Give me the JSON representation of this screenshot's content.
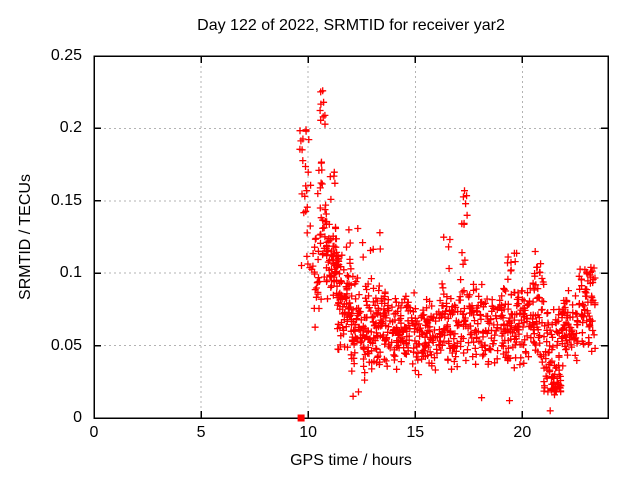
{
  "chart_data": {
    "type": "scatter",
    "title": "Day 122 of 2022, SRMTID for receiver yar2",
    "xlabel": "GPS time / hours",
    "ylabel": "SRMTID / TECUs",
    "xlim": [
      0,
      24
    ],
    "ylim": [
      0,
      0.25
    ],
    "xticks": {
      "values": [
        0,
        5,
        10,
        15,
        20
      ],
      "labels": [
        "0",
        "5",
        "10",
        "15",
        "20"
      ]
    },
    "yticks": {
      "values": [
        0,
        0.05,
        0.1,
        0.15,
        0.2,
        0.25
      ],
      "labels": [
        "0",
        "0.05",
        "0.1",
        "0.15",
        "0.2",
        "0.25"
      ]
    },
    "grid": true,
    "legend": "none",
    "marker": "plus",
    "marker_color": "#ff0000",
    "grid_color": "#b3b3b3",
    "axis_color": "#000000",
    "background_color": "#ffffff",
    "seed": 7,
    "series": [
      {
        "name": "srmtid-scatter",
        "marker": "plus",
        "color": "#ff0000",
        "highlight_points": [
          [
            9.9,
            0.199
          ],
          [
            10.68,
            0.226
          ],
          [
            10.72,
            0.218
          ],
          [
            10.7,
            0.208
          ],
          [
            10.5,
            0.171
          ],
          [
            10.45,
            0.155
          ],
          [
            11.9,
            0.13
          ],
          [
            13.35,
            0.128
          ],
          [
            17.3,
            0.157
          ],
          [
            17.35,
            0.148
          ],
          [
            17.42,
            0.14
          ],
          [
            20.6,
            0.115
          ],
          [
            23.2,
            0.104
          ],
          [
            12.1,
            0.015
          ],
          [
            12.35,
            0.018
          ],
          [
            18.1,
            0.014
          ],
          [
            19.4,
            0.012
          ],
          [
            21.3,
            0.005
          ],
          [
            21.5,
            0.016
          ],
          [
            21.62,
            0.02
          ]
        ],
        "point_bands": [
          {
            "h0": 9.6,
            "h1": 9.85,
            "n": 10,
            "vmin": 0.1,
            "vmax": 0.2,
            "shape": "uniform"
          },
          {
            "h0": 9.85,
            "h1": 10.15,
            "n": 14,
            "vmin": 0.095,
            "vmax": 0.2,
            "shape": "uniform"
          },
          {
            "h0": 10.15,
            "h1": 10.55,
            "n": 22,
            "vmin": 0.055,
            "vmax": 0.14,
            "shape": "mid"
          },
          {
            "h0": 10.55,
            "h1": 10.85,
            "n": 26,
            "vmin": 0.08,
            "vmax": 0.19,
            "shape": "mid"
          },
          {
            "h0": 10.55,
            "h1": 10.8,
            "n": 6,
            "vmin": 0.195,
            "vmax": 0.227,
            "shape": "uniform"
          },
          {
            "h0": 10.85,
            "h1": 11.35,
            "n": 60,
            "vmin": 0.075,
            "vmax": 0.145,
            "shape": "mid"
          },
          {
            "h0": 11.0,
            "h1": 11.3,
            "n": 5,
            "vmin": 0.15,
            "vmax": 0.185,
            "shape": "uniform"
          },
          {
            "h0": 11.35,
            "h1": 12.0,
            "n": 75,
            "vmin": 0.04,
            "vmax": 0.125,
            "shape": "mid"
          },
          {
            "h0": 12.0,
            "h1": 13.0,
            "n": 100,
            "vmin": 0.022,
            "vmax": 0.105,
            "shape": "mid"
          },
          {
            "h0": 12.3,
            "h1": 13.6,
            "n": 6,
            "vmin": 0.11,
            "vmax": 0.132,
            "shape": "uniform"
          },
          {
            "h0": 13.0,
            "h1": 14.0,
            "n": 85,
            "vmin": 0.03,
            "vmax": 0.098,
            "shape": "mid"
          },
          {
            "h0": 14.0,
            "h1": 15.0,
            "n": 85,
            "vmin": 0.028,
            "vmax": 0.092,
            "shape": "mid"
          },
          {
            "h0": 15.0,
            "h1": 16.0,
            "n": 80,
            "vmin": 0.026,
            "vmax": 0.088,
            "shape": "mid"
          },
          {
            "h0": 16.0,
            "h1": 17.0,
            "n": 80,
            "vmin": 0.03,
            "vmax": 0.096,
            "shape": "mid"
          },
          {
            "h0": 16.3,
            "h1": 17.0,
            "n": 4,
            "vmin": 0.1,
            "vmax": 0.125,
            "shape": "uniform"
          },
          {
            "h0": 17.0,
            "h1": 17.6,
            "n": 40,
            "vmin": 0.035,
            "vmax": 0.1,
            "shape": "mid"
          },
          {
            "h0": 17.15,
            "h1": 17.5,
            "n": 8,
            "vmin": 0.105,
            "vmax": 0.158,
            "shape": "uniform"
          },
          {
            "h0": 17.6,
            "h1": 18.6,
            "n": 70,
            "vmin": 0.03,
            "vmax": 0.1,
            "shape": "mid"
          },
          {
            "h0": 18.6,
            "h1": 19.6,
            "n": 70,
            "vmin": 0.028,
            "vmax": 0.102,
            "shape": "mid"
          },
          {
            "h0": 19.3,
            "h1": 20.0,
            "n": 8,
            "vmin": 0.1,
            "vmax": 0.115,
            "shape": "uniform"
          },
          {
            "h0": 19.6,
            "h1": 20.4,
            "n": 65,
            "vmin": 0.03,
            "vmax": 0.1,
            "shape": "mid"
          },
          {
            "h0": 20.4,
            "h1": 21.0,
            "n": 55,
            "vmin": 0.028,
            "vmax": 0.115,
            "shape": "mid"
          },
          {
            "h0": 21.0,
            "h1": 21.8,
            "n": 85,
            "vmin": 0.018,
            "vmax": 0.075,
            "shape": "low"
          },
          {
            "h0": 21.8,
            "h1": 22.6,
            "n": 70,
            "vmin": 0.03,
            "vmax": 0.09,
            "shape": "mid"
          },
          {
            "h0": 22.6,
            "h1": 23.45,
            "n": 55,
            "vmin": 0.045,
            "vmax": 0.105,
            "shape": "uniform"
          },
          {
            "h0": 22.9,
            "h1": 23.3,
            "n": 10,
            "vmin": 0.08,
            "vmax": 0.104,
            "shape": "uniform"
          }
        ]
      },
      {
        "name": "start-marker",
        "marker": "square",
        "color": "#ff0000",
        "points": [
          [
            9.67,
            0
          ]
        ]
      }
    ]
  }
}
